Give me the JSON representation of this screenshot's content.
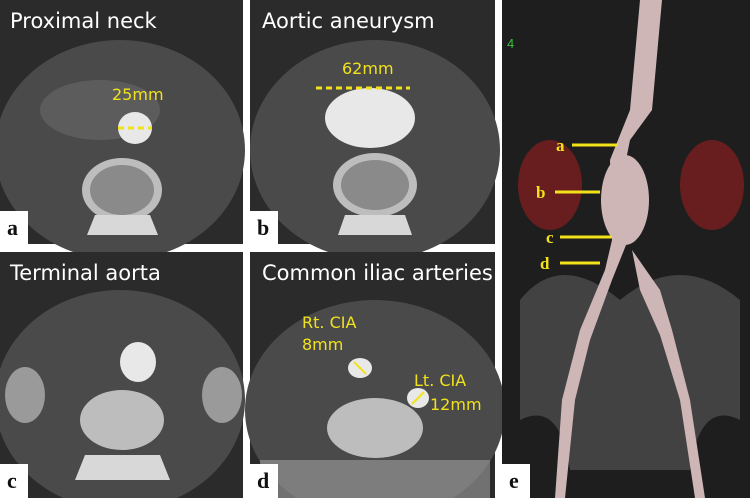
{
  "panels": [
    {
      "letter": "a",
      "title": "Proximal neck",
      "annotations": [
        "25mm"
      ]
    },
    {
      "letter": "b",
      "title": "Aortic aneurysm",
      "annotations": [
        "62mm"
      ]
    },
    {
      "letter": "c",
      "title": "Terminal aorta"
    },
    {
      "letter": "d",
      "title": "Common iliac arteries",
      "annotations": [
        "Rt. CIA",
        "8mm",
        "Lt. CIA",
        "12mm"
      ]
    },
    {
      "letter": "e",
      "annotations": [
        "a",
        "b",
        "c",
        "d"
      ],
      "corner_labels": [
        "4"
      ]
    }
  ]
}
